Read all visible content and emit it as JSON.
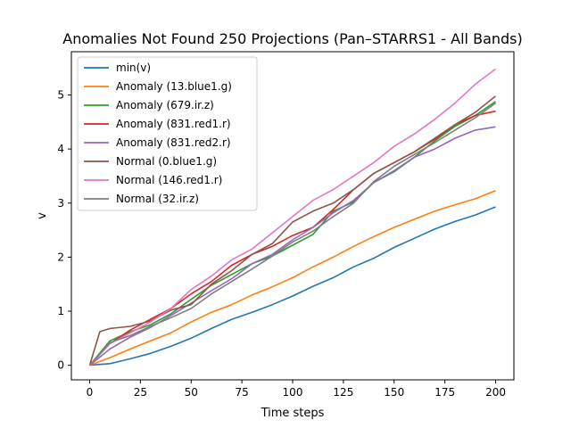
{
  "chart_data": {
    "type": "line",
    "title": "Anomalies Not Found 250 Projections (Pan–STARRS1 - All Bands)",
    "xlabel": "Time steps",
    "ylabel": "v",
    "xlim": [
      -9,
      209
    ],
    "ylim": [
      -0.27,
      5.8
    ],
    "xticks": [
      0,
      25,
      50,
      75,
      100,
      125,
      150,
      175,
      200
    ],
    "yticks": [
      0,
      1,
      2,
      3,
      4,
      5
    ],
    "grid": false,
    "legend_position": "upper-left",
    "series": [
      {
        "name": "min(v)",
        "color": "#1f77b4",
        "points": [
          [
            0,
            0
          ],
          [
            10,
            0.03
          ],
          [
            20,
            0.12
          ],
          [
            30,
            0.22
          ],
          [
            40,
            0.35
          ],
          [
            50,
            0.5
          ],
          [
            60,
            0.68
          ],
          [
            70,
            0.85
          ],
          [
            80,
            0.98
          ],
          [
            90,
            1.12
          ],
          [
            100,
            1.28
          ],
          [
            110,
            1.46
          ],
          [
            120,
            1.62
          ],
          [
            130,
            1.82
          ],
          [
            140,
            1.98
          ],
          [
            150,
            2.18
          ],
          [
            160,
            2.35
          ],
          [
            170,
            2.52
          ],
          [
            180,
            2.66
          ],
          [
            190,
            2.78
          ],
          [
            200,
            2.93
          ]
        ]
      },
      {
        "name": "Anomaly (13.blue1.g)",
        "color": "#ff7f0e",
        "points": [
          [
            0,
            0
          ],
          [
            10,
            0.14
          ],
          [
            20,
            0.3
          ],
          [
            30,
            0.45
          ],
          [
            40,
            0.6
          ],
          [
            50,
            0.8
          ],
          [
            60,
            0.98
          ],
          [
            70,
            1.12
          ],
          [
            80,
            1.3
          ],
          [
            90,
            1.45
          ],
          [
            100,
            1.62
          ],
          [
            110,
            1.82
          ],
          [
            120,
            2.0
          ],
          [
            130,
            2.2
          ],
          [
            140,
            2.38
          ],
          [
            150,
            2.55
          ],
          [
            160,
            2.7
          ],
          [
            170,
            2.85
          ],
          [
            180,
            2.97
          ],
          [
            190,
            3.08
          ],
          [
            200,
            3.23
          ]
        ]
      },
      {
        "name": "Anomaly (679.ir.z)",
        "color": "#2ca02c",
        "points": [
          [
            0,
            0
          ],
          [
            10,
            0.45
          ],
          [
            20,
            0.62
          ],
          [
            30,
            0.75
          ],
          [
            40,
            0.95
          ],
          [
            50,
            1.22
          ],
          [
            60,
            1.48
          ],
          [
            70,
            1.68
          ],
          [
            80,
            1.88
          ],
          [
            90,
            2.02
          ],
          [
            100,
            2.22
          ],
          [
            110,
            2.42
          ],
          [
            120,
            2.85
          ],
          [
            130,
            3.02
          ],
          [
            140,
            3.38
          ],
          [
            150,
            3.58
          ],
          [
            160,
            3.85
          ],
          [
            170,
            4.15
          ],
          [
            180,
            4.42
          ],
          [
            190,
            4.62
          ],
          [
            200,
            4.88
          ]
        ]
      },
      {
        "name": "Anomaly (831.red1.r)",
        "color": "#d62728",
        "points": [
          [
            0,
            0
          ],
          [
            10,
            0.4
          ],
          [
            20,
            0.65
          ],
          [
            30,
            0.85
          ],
          [
            40,
            1.05
          ],
          [
            50,
            1.32
          ],
          [
            60,
            1.55
          ],
          [
            70,
            1.85
          ],
          [
            80,
            2.05
          ],
          [
            90,
            2.2
          ],
          [
            100,
            2.4
          ],
          [
            110,
            2.55
          ],
          [
            120,
            2.88
          ],
          [
            130,
            3.25
          ],
          [
            140,
            3.55
          ],
          [
            150,
            3.75
          ],
          [
            160,
            3.95
          ],
          [
            170,
            4.18
          ],
          [
            180,
            4.45
          ],
          [
            190,
            4.62
          ],
          [
            200,
            4.7
          ]
        ]
      },
      {
        "name": "Anomaly (831.red2.r)",
        "color": "#9467bd",
        "points": [
          [
            0,
            0
          ],
          [
            10,
            0.3
          ],
          [
            20,
            0.52
          ],
          [
            30,
            0.7
          ],
          [
            40,
            0.92
          ],
          [
            50,
            1.15
          ],
          [
            60,
            1.38
          ],
          [
            70,
            1.6
          ],
          [
            80,
            1.88
          ],
          [
            90,
            2.05
          ],
          [
            100,
            2.32
          ],
          [
            110,
            2.55
          ],
          [
            120,
            2.82
          ],
          [
            130,
            3.05
          ],
          [
            140,
            3.38
          ],
          [
            150,
            3.6
          ],
          [
            160,
            3.85
          ],
          [
            170,
            4.0
          ],
          [
            180,
            4.2
          ],
          [
            190,
            4.35
          ],
          [
            200,
            4.41
          ]
        ]
      },
      {
        "name": "Normal (0.blue1.g)",
        "color": "#8c564b",
        "points": [
          [
            0,
            0
          ],
          [
            5,
            0.62
          ],
          [
            10,
            0.68
          ],
          [
            20,
            0.72
          ],
          [
            30,
            0.82
          ],
          [
            40,
            1.02
          ],
          [
            50,
            1.12
          ],
          [
            60,
            1.5
          ],
          [
            70,
            1.75
          ],
          [
            80,
            2.05
          ],
          [
            90,
            2.25
          ],
          [
            100,
            2.65
          ],
          [
            110,
            2.85
          ],
          [
            120,
            3.0
          ],
          [
            130,
            3.25
          ],
          [
            140,
            3.55
          ],
          [
            150,
            3.75
          ],
          [
            160,
            3.95
          ],
          [
            170,
            4.2
          ],
          [
            180,
            4.45
          ],
          [
            190,
            4.68
          ],
          [
            200,
            4.98
          ]
        ]
      },
      {
        "name": "Normal (146.red1.r)",
        "color": "#e377c2",
        "points": [
          [
            0,
            0
          ],
          [
            10,
            0.4
          ],
          [
            20,
            0.6
          ],
          [
            30,
            0.8
          ],
          [
            40,
            1.05
          ],
          [
            50,
            1.4
          ],
          [
            60,
            1.65
          ],
          [
            70,
            1.95
          ],
          [
            80,
            2.15
          ],
          [
            90,
            2.45
          ],
          [
            100,
            2.75
          ],
          [
            110,
            3.05
          ],
          [
            120,
            3.25
          ],
          [
            130,
            3.5
          ],
          [
            140,
            3.75
          ],
          [
            150,
            4.05
          ],
          [
            160,
            4.28
          ],
          [
            170,
            4.55
          ],
          [
            180,
            4.85
          ],
          [
            190,
            5.2
          ],
          [
            200,
            5.48
          ]
        ]
      },
      {
        "name": "Normal (32.ir.z)",
        "color": "#7f7f7f",
        "points": [
          [
            0,
            0
          ],
          [
            10,
            0.42
          ],
          [
            20,
            0.55
          ],
          [
            30,
            0.72
          ],
          [
            40,
            0.88
          ],
          [
            50,
            1.05
          ],
          [
            60,
            1.32
          ],
          [
            70,
            1.55
          ],
          [
            80,
            1.78
          ],
          [
            90,
            2.02
          ],
          [
            100,
            2.28
          ],
          [
            110,
            2.48
          ],
          [
            120,
            2.75
          ],
          [
            130,
            3.0
          ],
          [
            140,
            3.4
          ],
          [
            150,
            3.68
          ],
          [
            160,
            3.9
          ],
          [
            170,
            4.12
          ],
          [
            180,
            4.35
          ],
          [
            190,
            4.58
          ],
          [
            200,
            4.85
          ]
        ]
      }
    ]
  }
}
